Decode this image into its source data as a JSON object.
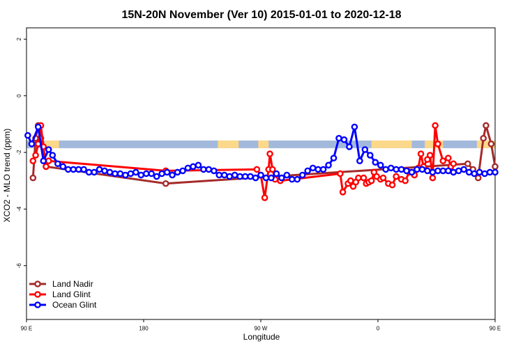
{
  "chart_data": {
    "type": "line",
    "title": "15N-20N November (Ver 10)   2015-01-01 to 2020-12-18",
    "xlabel": "Longitude",
    "ylabel": "XCO2 - MLO trend (ppm)",
    "xlim": [
      90,
      450
    ],
    "ylim": [
      -8,
      2
    ],
    "x_ticks": [
      {
        "value": 90,
        "label": "90 E"
      },
      {
        "value": 180,
        "label": "180"
      },
      {
        "value": 270,
        "label": "90 W"
      },
      {
        "value": 360,
        "label": "0"
      },
      {
        "value": 450,
        "label": "90 E"
      },
      {
        "value": 540,
        "label": "180"
      }
    ],
    "y_ticks": [
      {
        "value": 2,
        "label": "2"
      },
      {
        "value": 0,
        "label": "0"
      },
      {
        "value": -2,
        "label": "-2"
      },
      {
        "value": -4,
        "label": "-4"
      },
      {
        "value": -6,
        "label": "-6"
      }
    ],
    "legend_position": "bottom-left",
    "band": {
      "y_min": -1.85,
      "y_max": -1.58,
      "ocean_color": "#a2b9dc",
      "land_color": "#fcd98a"
    },
    "land_segments": [
      [
        104,
        115
      ],
      [
        237,
        253
      ],
      [
        268,
        276
      ],
      [
        355,
        386
      ],
      [
        396,
        410
      ],
      [
        436,
        452
      ],
      [
        460,
        486
      ]
    ],
    "series": [
      {
        "name": "Land Nadir",
        "color": "#a52a2a",
        "points": [
          [
            95,
            -2.9
          ],
          [
            97,
            -1.5
          ],
          [
            99,
            -1.05
          ],
          [
            101,
            -1.5
          ],
          [
            105,
            -2.5
          ],
          [
            197,
            -3.1
          ],
          [
            429,
            -2.4
          ],
          [
            433,
            -2.6
          ],
          [
            437,
            -2.9
          ],
          [
            441,
            -1.5
          ],
          [
            443,
            -1.05
          ],
          [
            447,
            -1.7
          ],
          [
            450,
            -2.5
          ]
        ]
      },
      {
        "name": "Land Glint",
        "color": "#ff0000",
        "points": [
          [
            95,
            -2.3
          ],
          [
            97,
            -2.1
          ],
          [
            99,
            -1.7
          ],
          [
            101,
            -1.05
          ],
          [
            103,
            -1.8
          ],
          [
            105,
            -2.5
          ],
          [
            107,
            -2.3
          ],
          [
            197,
            -2.65
          ],
          [
            267,
            -2.6
          ],
          [
            270,
            -2.8
          ],
          [
            273,
            -3.6
          ],
          [
            276,
            -2.6
          ],
          [
            277,
            -2.05
          ],
          [
            279,
            -2.6
          ],
          [
            281,
            -2.95
          ],
          [
            285,
            -3.0
          ],
          [
            331,
            -2.75
          ],
          [
            333,
            -3.4
          ],
          [
            337,
            -3.1
          ],
          [
            339,
            -3.0
          ],
          [
            341,
            -3.2
          ],
          [
            343,
            -3.05
          ],
          [
            345,
            -2.9
          ],
          [
            349,
            -2.9
          ],
          [
            351,
            -3.1
          ],
          [
            353,
            -3.05
          ],
          [
            355,
            -3.0
          ],
          [
            357,
            -2.7
          ],
          [
            359,
            -2.85
          ],
          [
            362,
            -2.95
          ],
          [
            364,
            -2.9
          ],
          [
            368,
            -3.1
          ],
          [
            371,
            -3.15
          ],
          [
            374,
            -2.85
          ],
          [
            378,
            -2.95
          ],
          [
            381,
            -3.0
          ],
          [
            384,
            -2.7
          ],
          [
            388,
            -2.8
          ],
          [
            391,
            -2.55
          ],
          [
            393,
            -2.05
          ],
          [
            395,
            -2.5
          ],
          [
            398,
            -2.25
          ],
          [
            400,
            -2.1
          ],
          [
            402,
            -2.9
          ],
          [
            404,
            -1.05
          ],
          [
            406,
            -1.7
          ],
          [
            410,
            -2.3
          ],
          [
            414,
            -2.2
          ],
          [
            416,
            -2.5
          ],
          [
            418,
            -2.4
          ]
        ]
      },
      {
        "name": "Ocean Glint",
        "color": "#0000ff",
        "points": [
          [
            91,
            -1.4
          ],
          [
            94,
            -1.7
          ],
          [
            99,
            -1.1
          ],
          [
            103,
            -2.3
          ],
          [
            107,
            -1.9
          ],
          [
            110,
            -2.1
          ],
          [
            114,
            -2.4
          ],
          [
            118,
            -2.5
          ],
          [
            122,
            -2.6
          ],
          [
            126,
            -2.6
          ],
          [
            130,
            -2.6
          ],
          [
            134,
            -2.6
          ],
          [
            138,
            -2.7
          ],
          [
            142,
            -2.7
          ],
          [
            146,
            -2.6
          ],
          [
            150,
            -2.65
          ],
          [
            154,
            -2.7
          ],
          [
            158,
            -2.75
          ],
          [
            162,
            -2.75
          ],
          [
            166,
            -2.8
          ],
          [
            170,
            -2.75
          ],
          [
            174,
            -2.7
          ],
          [
            178,
            -2.8
          ],
          [
            182,
            -2.75
          ],
          [
            186,
            -2.75
          ],
          [
            190,
            -2.85
          ],
          [
            194,
            -2.75
          ],
          [
            198,
            -2.7
          ],
          [
            202,
            -2.8
          ],
          [
            206,
            -2.7
          ],
          [
            210,
            -2.65
          ],
          [
            214,
            -2.55
          ],
          [
            218,
            -2.5
          ],
          [
            222,
            -2.45
          ],
          [
            226,
            -2.6
          ],
          [
            230,
            -2.6
          ],
          [
            234,
            -2.65
          ],
          [
            238,
            -2.8
          ],
          [
            242,
            -2.8
          ],
          [
            246,
            -2.85
          ],
          [
            250,
            -2.8
          ],
          [
            254,
            -2.85
          ],
          [
            258,
            -2.85
          ],
          [
            262,
            -2.85
          ],
          [
            266,
            -2.9
          ],
          [
            270,
            -2.8
          ],
          [
            274,
            -2.9
          ],
          [
            278,
            -2.9
          ],
          [
            282,
            -2.75
          ],
          [
            286,
            -2.9
          ],
          [
            290,
            -2.8
          ],
          [
            294,
            -2.95
          ],
          [
            298,
            -2.95
          ],
          [
            302,
            -2.8
          ],
          [
            306,
            -2.65
          ],
          [
            310,
            -2.55
          ],
          [
            314,
            -2.6
          ],
          [
            318,
            -2.6
          ],
          [
            322,
            -2.45
          ],
          [
            326,
            -2.2
          ],
          [
            330,
            -1.5
          ],
          [
            334,
            -1.55
          ],
          [
            338,
            -1.8
          ],
          [
            342,
            -1.1
          ],
          [
            346,
            -2.3
          ],
          [
            350,
            -1.9
          ],
          [
            354,
            -2.1
          ],
          [
            358,
            -2.35
          ],
          [
            362,
            -2.45
          ],
          [
            366,
            -2.6
          ],
          [
            370,
            -2.55
          ],
          [
            374,
            -2.6
          ],
          [
            378,
            -2.6
          ],
          [
            382,
            -2.65
          ],
          [
            386,
            -2.7
          ],
          [
            390,
            -2.6
          ],
          [
            394,
            -2.6
          ],
          [
            398,
            -2.65
          ],
          [
            402,
            -2.7
          ],
          [
            406,
            -2.65
          ],
          [
            410,
            -2.65
          ],
          [
            414,
            -2.65
          ],
          [
            418,
            -2.7
          ],
          [
            422,
            -2.65
          ],
          [
            426,
            -2.6
          ],
          [
            430,
            -2.7
          ],
          [
            434,
            -2.75
          ],
          [
            438,
            -2.7
          ],
          [
            442,
            -2.75
          ],
          [
            446,
            -2.7
          ],
          [
            450,
            -2.7
          ]
        ]
      }
    ]
  }
}
